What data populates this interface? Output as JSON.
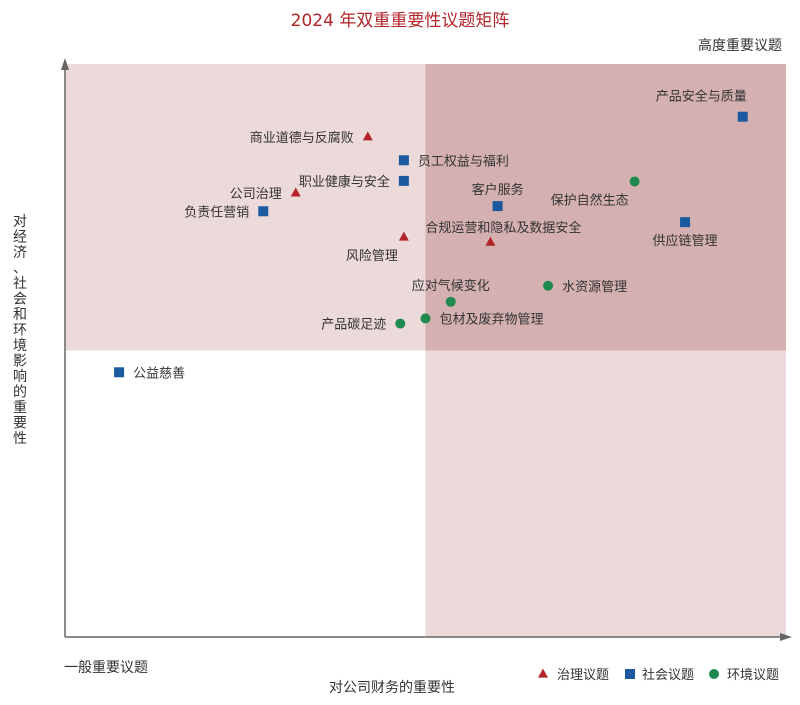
{
  "chart_data": {
    "type": "scatter",
    "title": "2024 年双重重要性议题矩阵",
    "xlabel": "对公司财务的重要性",
    "ylabel": "对经济、社会和环境影响的重要性",
    "corner_high": "高度重要议题",
    "corner_low": "一般重要议题",
    "xlim": [
      0,
      100
    ],
    "ylim": [
      0,
      100
    ],
    "threshold": {
      "x": 50,
      "y": 50
    },
    "legend_position": "bottom-right",
    "colors": {
      "governance": "#b22429",
      "social": "#1c5aa0",
      "environment": "#1e8a4e",
      "quadrant_light": "#ecd9da",
      "quadrant_dark": "#d4b0b1",
      "title": "#b22429",
      "axis": "#666666",
      "label": "#333333"
    },
    "categories": [
      {
        "key": "governance",
        "name": "治理议题",
        "marker": "triangle"
      },
      {
        "key": "social",
        "name": "社会议题",
        "marker": "square"
      },
      {
        "key": "environment",
        "name": "环境议题",
        "marker": "circle"
      }
    ],
    "points": [
      {
        "label": "产品安全与质量",
        "category": "social",
        "x": 94.0,
        "y": 90.8,
        "label_pos": "above-left"
      },
      {
        "label": "商业道德与反腐败",
        "category": "governance",
        "x": 42.0,
        "y": 87.3,
        "label_pos": "left"
      },
      {
        "label": "员工权益与福利",
        "category": "social",
        "x": 47.0,
        "y": 83.2,
        "label_pos": "right"
      },
      {
        "label": "职业健康与安全",
        "category": "social",
        "x": 47.0,
        "y": 79.6,
        "label_pos": "left"
      },
      {
        "label": "保护自然生态",
        "category": "environment",
        "x": 79.0,
        "y": 79.5,
        "label_pos": "below-left"
      },
      {
        "label": "公司治理",
        "category": "governance",
        "x": 32.0,
        "y": 77.5,
        "label_pos": "left"
      },
      {
        "label": "客户服务",
        "category": "social",
        "x": 60.0,
        "y": 75.2,
        "label_pos": "above"
      },
      {
        "label": "负责任营销",
        "category": "social",
        "x": 27.5,
        "y": 74.3,
        "label_pos": "left"
      },
      {
        "label": "供应链管理",
        "category": "social",
        "x": 86.0,
        "y": 72.4,
        "label_pos": "below"
      },
      {
        "label": "合规运营和隐私及数据安全",
        "category": "governance",
        "x": 59.0,
        "y": 68.9,
        "label_pos": "above-right"
      },
      {
        "label": "风险管理",
        "category": "governance",
        "x": 47.0,
        "y": 69.8,
        "label_pos": "below-left"
      },
      {
        "label": "应对气候变化",
        "category": "environment",
        "x": 53.5,
        "y": 58.5,
        "label_pos": "above"
      },
      {
        "label": "水资源管理",
        "category": "environment",
        "x": 67.0,
        "y": 61.3,
        "label_pos": "right"
      },
      {
        "label": "包材及废弃物管理",
        "category": "environment",
        "x": 50.0,
        "y": 55.6,
        "label_pos": "right"
      },
      {
        "label": "产品碳足迹",
        "category": "environment",
        "x": 46.5,
        "y": 54.7,
        "label_pos": "left"
      },
      {
        "label": "公益慈善",
        "category": "social",
        "x": 7.5,
        "y": 46.2,
        "label_pos": "right"
      }
    ]
  }
}
